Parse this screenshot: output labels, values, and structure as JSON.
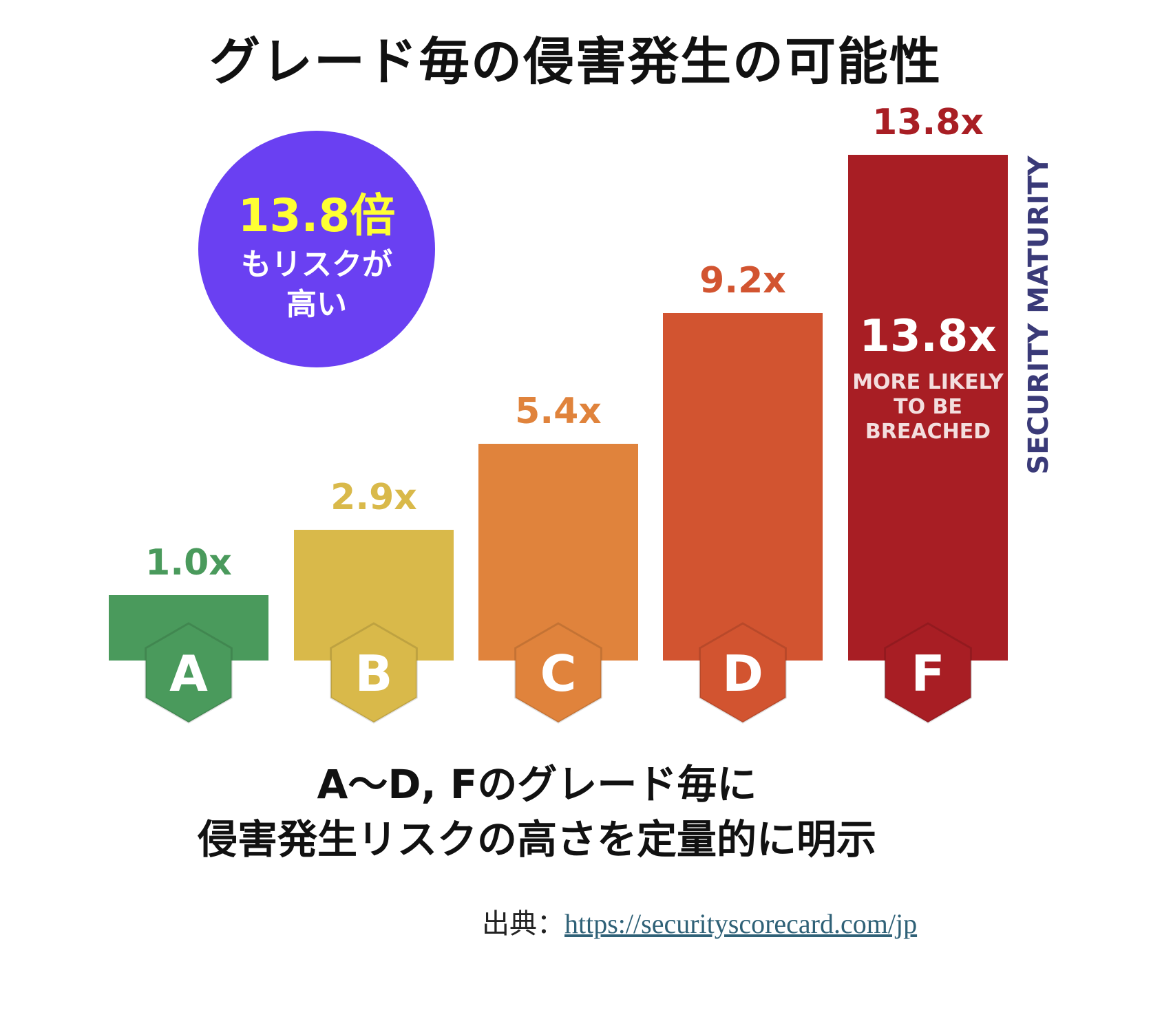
{
  "title": "グレード毎の侵害発生の可能性",
  "badge": {
    "value": "13.8倍",
    "line1": "もリスクが",
    "line2": "高い"
  },
  "chart_data": {
    "type": "bar",
    "categories": [
      "A",
      "B",
      "C",
      "D",
      "F"
    ],
    "values": [
      1.0,
      2.9,
      5.4,
      9.2,
      13.8
    ],
    "value_labels": [
      "1.0x",
      "2.9x",
      "5.4x",
      "9.2x",
      "13.8x"
    ],
    "colors": [
      "#4a9a5c",
      "#d9b94a",
      "#e0833c",
      "#d25430",
      "#a81e24"
    ],
    "label_colors": [
      "#4a9a5c",
      "#d9b94a",
      "#e0833c",
      "#d25430",
      "#a81e24"
    ],
    "inbar_callout": {
      "value": "13.8x",
      "lines": [
        "MORE LIKELY",
        "TO BE",
        "BREACHED"
      ]
    },
    "side_label": "SECURITY MATURITY",
    "side_label_color": "#3a3a78",
    "ylim": [
      0,
      13.8
    ]
  },
  "caption": {
    "line1": "A〜D, Fのグレード毎に",
    "line2": "侵害発生リスクの高さを定量的に明示"
  },
  "source": {
    "prefix": "出典：",
    "url": "https://securityscorecard.com/jp"
  }
}
